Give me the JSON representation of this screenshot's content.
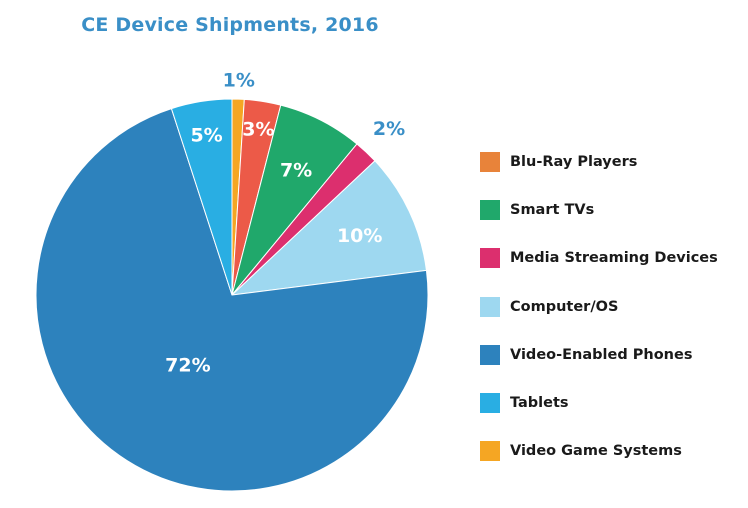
{
  "chart_data": {
    "type": "pie",
    "title": "CE Device Shipments, 2016",
    "legend_position": "right",
    "slices": [
      {
        "name": "Video Game Systems",
        "value": 1,
        "label": "1%",
        "color": "#f5a623"
      },
      {
        "name": "Blu-Ray Players",
        "value": 3,
        "label": "3%",
        "color": "#ec5a48"
      },
      {
        "name": "Smart TVs",
        "value": 7,
        "label": "7%",
        "color": "#20a86b"
      },
      {
        "name": "Media Streaming Devices",
        "value": 2,
        "label": "2%",
        "color": "#dc2f6e"
      },
      {
        "name": "Computer/OS",
        "value": 10,
        "label": "10%",
        "color": "#9ed8f0"
      },
      {
        "name": "Video-Enabled Phones",
        "value": 72,
        "label": "72%",
        "color": "#2d82bd"
      },
      {
        "name": "Tablets",
        "value": 5,
        "label": "5%",
        "color": "#29aee3"
      }
    ],
    "legend": [
      {
        "label": "Blu-Ray Players",
        "color": "#e8833a"
      },
      {
        "label": "Smart TVs",
        "color": "#20a86b"
      },
      {
        "label": "Media Streaming Devices",
        "color": "#dc2f6e"
      },
      {
        "label": "Computer/OS",
        "color": "#9ed8f0"
      },
      {
        "label": "Video-Enabled Phones",
        "color": "#2d82bd"
      },
      {
        "label": "Tablets",
        "color": "#29aee3"
      },
      {
        "label": "Video Game Systems",
        "color": "#f5a623"
      }
    ]
  }
}
